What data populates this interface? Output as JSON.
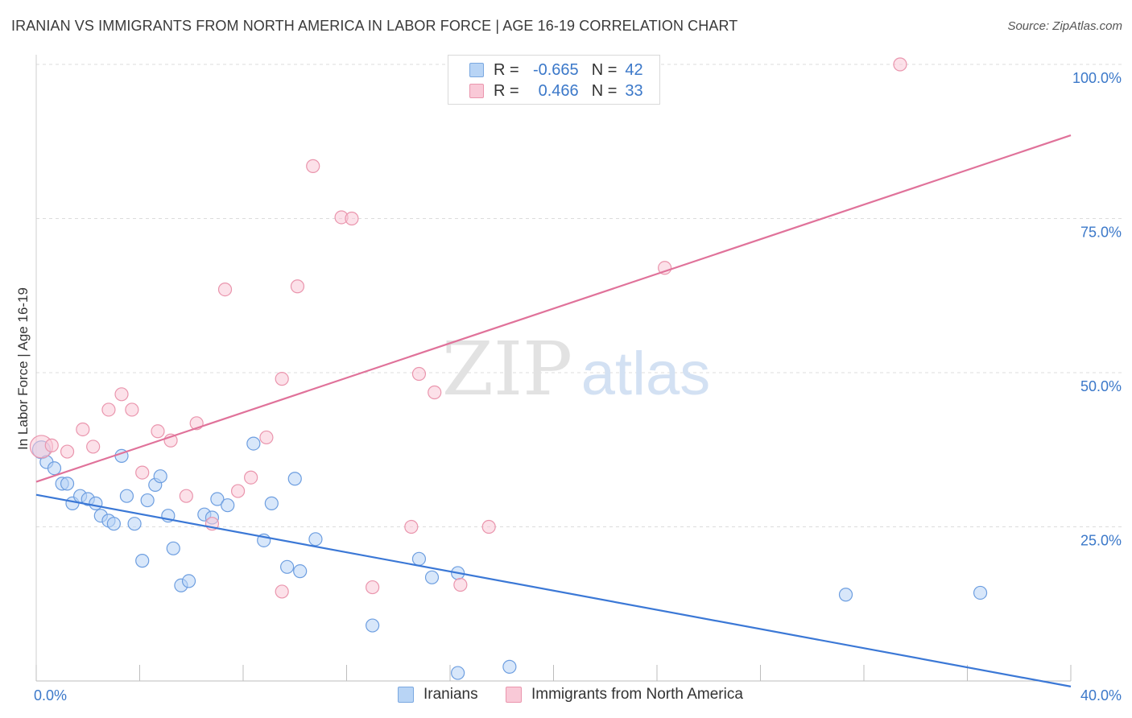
{
  "title": "IRANIAN VS IMMIGRANTS FROM NORTH AMERICA IN LABOR FORCE | AGE 16-19 CORRELATION CHART",
  "source": "Source: ZipAtlas.com",
  "watermark": {
    "zip": "ZIP",
    "atlas": "atlas"
  },
  "legend": {
    "r_label": "R =",
    "n_label": "N =",
    "rows": [
      {
        "r": "-0.665",
        "n": "42",
        "fill": "#b8d4f5",
        "stroke": "#7aa8e0"
      },
      {
        "r": "0.466",
        "n": "33",
        "fill": "#f9c9d7",
        "stroke": "#ea95ad"
      }
    ]
  },
  "chart_data": {
    "type": "scatter",
    "ylabel": "In Labor Force | Age 16-19",
    "xlim": [
      0,
      40
    ],
    "ylim": [
      0,
      100
    ],
    "x_ticks": [
      "0.0%",
      "40.0%"
    ],
    "y_ticks": [
      {
        "value": 25,
        "label": "25.0%"
      },
      {
        "value": 50,
        "label": "50.0%"
      },
      {
        "value": 75,
        "label": "75.0%"
      },
      {
        "value": 100,
        "label": "100.0%"
      }
    ],
    "grid": true,
    "series": [
      {
        "name": "Iranians",
        "color": "#3b78d6",
        "fill": "#b8d4f5",
        "stroke": "#6d9ee0",
        "trend": {
          "x": [
            0,
            40
          ],
          "y": [
            30.2,
            -0.9
          ]
        },
        "points": [
          [
            0.2,
            37.5
          ],
          [
            0.4,
            35.5
          ],
          [
            0.7,
            34.5
          ],
          [
            1.0,
            32.0
          ],
          [
            1.2,
            32.0
          ],
          [
            1.4,
            28.8
          ],
          [
            1.7,
            30.0
          ],
          [
            2.0,
            29.5
          ],
          [
            2.3,
            28.8
          ],
          [
            2.5,
            26.8
          ],
          [
            2.8,
            26.0
          ],
          [
            3.0,
            25.5
          ],
          [
            3.3,
            36.5
          ],
          [
            3.5,
            30.0
          ],
          [
            3.8,
            25.5
          ],
          [
            4.1,
            19.5
          ],
          [
            4.3,
            29.3
          ],
          [
            4.6,
            31.8
          ],
          [
            4.8,
            33.2
          ],
          [
            5.1,
            26.8
          ],
          [
            5.3,
            21.5
          ],
          [
            5.6,
            15.5
          ],
          [
            5.9,
            16.2
          ],
          [
            6.5,
            27.0
          ],
          [
            6.8,
            26.5
          ],
          [
            7.0,
            29.5
          ],
          [
            7.4,
            28.5
          ],
          [
            8.4,
            38.5
          ],
          [
            8.8,
            22.8
          ],
          [
            9.1,
            28.8
          ],
          [
            9.7,
            18.5
          ],
          [
            10.0,
            32.8
          ],
          [
            10.2,
            17.8
          ],
          [
            10.8,
            23.0
          ],
          [
            13.0,
            9.0
          ],
          [
            14.8,
            19.8
          ],
          [
            15.3,
            16.8
          ],
          [
            16.3,
            17.5
          ],
          [
            16.3,
            1.3
          ],
          [
            18.3,
            2.3
          ],
          [
            31.3,
            14.0
          ],
          [
            36.5,
            14.3
          ]
        ]
      },
      {
        "name": "Immigrants from North America",
        "color": "#e0729a",
        "fill": "#f9c9d7",
        "stroke": "#ea95ad",
        "trend": {
          "x": [
            0,
            40
          ],
          "y": [
            32.3,
            88.5
          ]
        },
        "points": [
          [
            0.2,
            38.0
          ],
          [
            0.6,
            38.2
          ],
          [
            1.2,
            37.2
          ],
          [
            1.8,
            40.8
          ],
          [
            2.2,
            38.0
          ],
          [
            2.8,
            44.0
          ],
          [
            3.3,
            46.5
          ],
          [
            3.7,
            44.0
          ],
          [
            4.1,
            33.8
          ],
          [
            4.7,
            40.5
          ],
          [
            5.2,
            39.0
          ],
          [
            5.8,
            30.0
          ],
          [
            6.2,
            41.8
          ],
          [
            6.8,
            25.5
          ],
          [
            7.3,
            63.5
          ],
          [
            7.8,
            30.8
          ],
          [
            8.3,
            33.0
          ],
          [
            8.9,
            39.5
          ],
          [
            9.5,
            14.5
          ],
          [
            9.5,
            49.0
          ],
          [
            10.1,
            64.0
          ],
          [
            10.7,
            83.5
          ],
          [
            11.8,
            75.2
          ],
          [
            12.2,
            75.0
          ],
          [
            13.0,
            15.2
          ],
          [
            14.5,
            25.0
          ],
          [
            14.8,
            49.8
          ],
          [
            15.4,
            46.8
          ],
          [
            16.4,
            15.6
          ],
          [
            17.5,
            25.0
          ],
          [
            20.8,
            100.0
          ],
          [
            24.3,
            67.0
          ],
          [
            33.4,
            100.0
          ]
        ]
      }
    ]
  }
}
